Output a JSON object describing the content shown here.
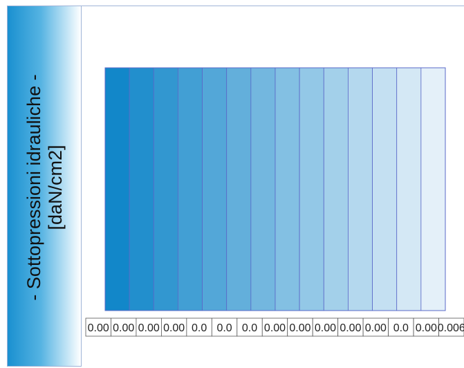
{
  "chart_data": {
    "type": "heatmap",
    "title": "- Sottopressioni idrauliche -",
    "unit_label": "[daN/cm2]",
    "columns": 14,
    "tick_labels": [
      "0.00",
      "0.00",
      "0.00",
      "0.00",
      "0.0",
      "0.0",
      "0.0",
      "0.00",
      "0.00",
      "0.00",
      "0.00",
      "0.00",
      "0.0",
      "0.00",
      "0.006"
    ],
    "color_start": "#1287c9",
    "color_end": "#e4f0f9",
    "cell_border": "#5a68c8"
  }
}
